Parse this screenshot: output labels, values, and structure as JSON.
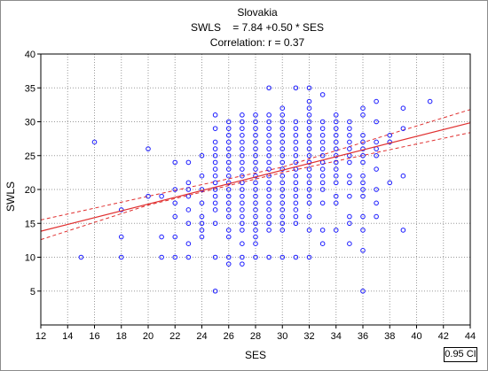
{
  "chart_data": {
    "type": "scatter",
    "title": "Slovakia",
    "subtitle": "SWLS    = 7.84 +0.50 * SES",
    "annotation": "Correlation: r = 0.37",
    "xlabel": "SES",
    "ylabel": "SWLS",
    "xlim": [
      12,
      44
    ],
    "ylim": [
      0,
      40
    ],
    "xticks": [
      12,
      14,
      16,
      18,
      20,
      22,
      24,
      26,
      28,
      30,
      32,
      34,
      36,
      38,
      40,
      42,
      44
    ],
    "yticks": [
      5,
      10,
      15,
      20,
      25,
      30,
      35,
      40
    ],
    "grid": true,
    "regression": {
      "intercept": 7.84,
      "slope": 0.5
    },
    "confidence_band": {
      "label": "0.95 CI",
      "lower": [
        [
          12,
          12.6
        ],
        [
          20,
          17.7
        ],
        [
          30,
          22.5
        ],
        [
          44,
          28.4
        ]
      ],
      "upper": [
        [
          12,
          15.5
        ],
        [
          20,
          19.0
        ],
        [
          30,
          23.3
        ],
        [
          44,
          31.8
        ]
      ]
    },
    "points": [
      [
        15,
        10
      ],
      [
        16,
        27
      ],
      [
        18,
        10
      ],
      [
        18,
        13
      ],
      [
        18,
        17
      ],
      [
        20,
        19
      ],
      [
        20,
        26
      ],
      [
        21,
        10
      ],
      [
        21,
        13
      ],
      [
        21,
        19
      ],
      [
        22,
        10
      ],
      [
        22,
        13
      ],
      [
        22,
        16
      ],
      [
        22,
        18
      ],
      [
        22,
        20
      ],
      [
        22,
        24
      ],
      [
        23,
        10
      ],
      [
        23,
        12
      ],
      [
        23,
        15
      ],
      [
        23,
        17
      ],
      [
        23,
        19
      ],
      [
        23,
        20
      ],
      [
        23,
        21
      ],
      [
        23,
        24
      ],
      [
        24,
        13
      ],
      [
        24,
        14
      ],
      [
        24,
        15
      ],
      [
        24,
        16
      ],
      [
        24,
        18
      ],
      [
        24,
        20
      ],
      [
        24,
        22
      ],
      [
        24,
        25
      ],
      [
        25,
        5
      ],
      [
        25,
        10
      ],
      [
        25,
        15
      ],
      [
        25,
        17
      ],
      [
        25,
        18
      ],
      [
        25,
        19
      ],
      [
        25,
        20
      ],
      [
        25,
        21
      ],
      [
        25,
        22
      ],
      [
        25,
        23
      ],
      [
        25,
        24
      ],
      [
        25,
        25
      ],
      [
        25,
        26
      ],
      [
        25,
        27
      ],
      [
        25,
        29
      ],
      [
        25,
        31
      ],
      [
        26,
        9
      ],
      [
        26,
        10
      ],
      [
        26,
        13
      ],
      [
        26,
        14
      ],
      [
        26,
        16
      ],
      [
        26,
        17
      ],
      [
        26,
        18
      ],
      [
        26,
        19
      ],
      [
        26,
        20
      ],
      [
        26,
        21
      ],
      [
        26,
        22
      ],
      [
        26,
        23
      ],
      [
        26,
        24
      ],
      [
        26,
        25
      ],
      [
        26,
        26
      ],
      [
        26,
        27
      ],
      [
        26,
        28
      ],
      [
        26,
        29
      ],
      [
        26,
        30
      ],
      [
        27,
        9
      ],
      [
        27,
        10
      ],
      [
        27,
        12
      ],
      [
        27,
        14
      ],
      [
        27,
        15
      ],
      [
        27,
        16
      ],
      [
        27,
        17
      ],
      [
        27,
        18
      ],
      [
        27,
        19
      ],
      [
        27,
        20
      ],
      [
        27,
        21
      ],
      [
        27,
        22
      ],
      [
        27,
        23
      ],
      [
        27,
        24
      ],
      [
        27,
        25
      ],
      [
        27,
        26
      ],
      [
        27,
        27
      ],
      [
        27,
        28
      ],
      [
        27,
        29
      ],
      [
        27,
        30
      ],
      [
        27,
        31
      ],
      [
        28,
        10
      ],
      [
        28,
        12
      ],
      [
        28,
        13
      ],
      [
        28,
        14
      ],
      [
        28,
        15
      ],
      [
        28,
        16
      ],
      [
        28,
        17
      ],
      [
        28,
        18
      ],
      [
        28,
        19
      ],
      [
        28,
        20
      ],
      [
        28,
        21
      ],
      [
        28,
        22
      ],
      [
        28,
        23
      ],
      [
        28,
        24
      ],
      [
        28,
        25
      ],
      [
        28,
        26
      ],
      [
        28,
        27
      ],
      [
        28,
        28
      ],
      [
        28,
        29
      ],
      [
        28,
        30
      ],
      [
        28,
        31
      ],
      [
        29,
        10
      ],
      [
        29,
        14
      ],
      [
        29,
        15
      ],
      [
        29,
        16
      ],
      [
        29,
        17
      ],
      [
        29,
        18
      ],
      [
        29,
        19
      ],
      [
        29,
        20
      ],
      [
        29,
        21
      ],
      [
        29,
        22
      ],
      [
        29,
        23
      ],
      [
        29,
        24
      ],
      [
        29,
        25
      ],
      [
        29,
        26
      ],
      [
        29,
        27
      ],
      [
        29,
        28
      ],
      [
        29,
        29
      ],
      [
        29,
        30
      ],
      [
        29,
        31
      ],
      [
        29,
        35
      ],
      [
        30,
        10
      ],
      [
        30,
        14
      ],
      [
        30,
        15
      ],
      [
        30,
        16
      ],
      [
        30,
        17
      ],
      [
        30,
        18
      ],
      [
        30,
        19
      ],
      [
        30,
        20
      ],
      [
        30,
        21
      ],
      [
        30,
        22
      ],
      [
        30,
        23
      ],
      [
        30,
        24
      ],
      [
        30,
        25
      ],
      [
        30,
        26
      ],
      [
        30,
        27
      ],
      [
        30,
        28
      ],
      [
        30,
        29
      ],
      [
        30,
        30
      ],
      [
        30,
        31
      ],
      [
        30,
        32
      ],
      [
        31,
        10
      ],
      [
        31,
        15
      ],
      [
        31,
        16
      ],
      [
        31,
        17
      ],
      [
        31,
        18
      ],
      [
        31,
        19
      ],
      [
        31,
        20
      ],
      [
        31,
        21
      ],
      [
        31,
        22
      ],
      [
        31,
        23
      ],
      [
        31,
        24
      ],
      [
        31,
        25
      ],
      [
        31,
        26
      ],
      [
        31,
        27
      ],
      [
        31,
        28
      ],
      [
        31,
        29
      ],
      [
        31,
        30
      ],
      [
        31,
        35
      ],
      [
        32,
        10
      ],
      [
        32,
        14
      ],
      [
        32,
        16
      ],
      [
        32,
        18
      ],
      [
        32,
        19
      ],
      [
        32,
        20
      ],
      [
        32,
        21
      ],
      [
        32,
        22
      ],
      [
        32,
        23
      ],
      [
        32,
        24
      ],
      [
        32,
        25
      ],
      [
        32,
        26
      ],
      [
        32,
        27
      ],
      [
        32,
        28
      ],
      [
        32,
        29
      ],
      [
        32,
        30
      ],
      [
        32,
        31
      ],
      [
        32,
        32
      ],
      [
        32,
        33
      ],
      [
        32,
        35
      ],
      [
        33,
        12
      ],
      [
        33,
        14
      ],
      [
        33,
        18
      ],
      [
        33,
        20
      ],
      [
        33,
        21
      ],
      [
        33,
        22
      ],
      [
        33,
        23
      ],
      [
        33,
        24
      ],
      [
        33,
        25
      ],
      [
        33,
        26
      ],
      [
        33,
        27
      ],
      [
        33,
        28
      ],
      [
        33,
        29
      ],
      [
        33,
        30
      ],
      [
        33,
        34
      ],
      [
        34,
        14
      ],
      [
        34,
        18
      ],
      [
        34,
        19
      ],
      [
        34,
        21
      ],
      [
        34,
        22
      ],
      [
        34,
        23
      ],
      [
        34,
        24
      ],
      [
        34,
        25
      ],
      [
        34,
        26
      ],
      [
        34,
        27
      ],
      [
        34,
        28
      ],
      [
        34,
        29
      ],
      [
        34,
        30
      ],
      [
        34,
        31
      ],
      [
        35,
        12
      ],
      [
        35,
        15
      ],
      [
        35,
        16
      ],
      [
        35,
        19
      ],
      [
        35,
        21
      ],
      [
        35,
        22
      ],
      [
        35,
        24
      ],
      [
        35,
        25
      ],
      [
        35,
        26
      ],
      [
        35,
        27
      ],
      [
        35,
        28
      ],
      [
        35,
        29
      ],
      [
        35,
        30
      ],
      [
        36,
        5
      ],
      [
        36,
        11
      ],
      [
        36,
        14
      ],
      [
        36,
        16
      ],
      [
        36,
        19
      ],
      [
        36,
        20
      ],
      [
        36,
        21
      ],
      [
        36,
        22
      ],
      [
        36,
        24
      ],
      [
        36,
        25
      ],
      [
        36,
        26
      ],
      [
        36,
        27
      ],
      [
        36,
        28
      ],
      [
        36,
        31
      ],
      [
        36,
        32
      ],
      [
        37,
        16
      ],
      [
        37,
        18
      ],
      [
        37,
        20
      ],
      [
        37,
        23
      ],
      [
        37,
        25
      ],
      [
        37,
        26
      ],
      [
        37,
        27
      ],
      [
        37,
        30
      ],
      [
        37,
        33
      ],
      [
        38,
        21
      ],
      [
        38,
        27
      ],
      [
        38,
        28
      ],
      [
        39,
        14
      ],
      [
        39,
        22
      ],
      [
        39,
        29
      ],
      [
        39,
        32
      ],
      [
        41,
        33
      ]
    ]
  }
}
